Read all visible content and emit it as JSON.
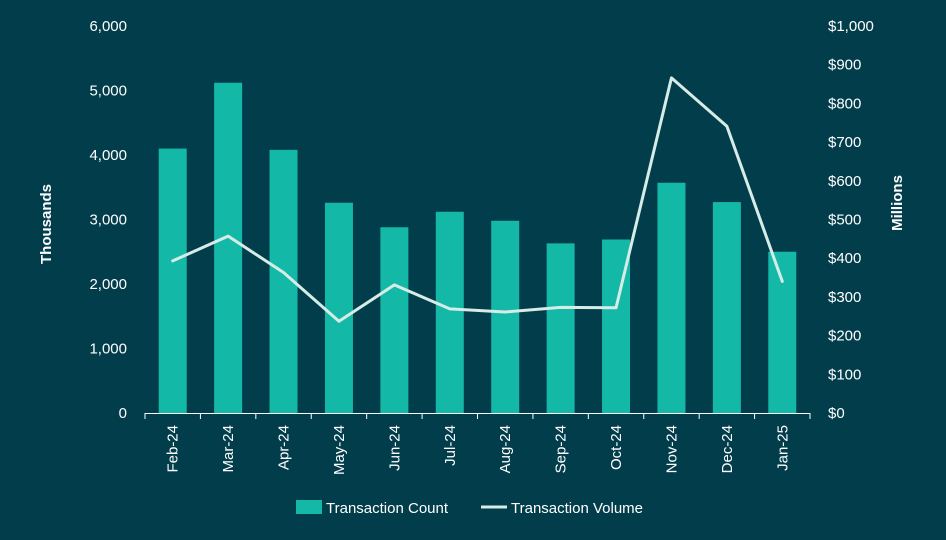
{
  "chart_data": {
    "type": "bar",
    "categories": [
      "Feb-24",
      "Mar-24",
      "Apr-24",
      "May-24",
      "Jun-24",
      "Jul-24",
      "Aug-24",
      "Sep-24",
      "Oct-24",
      "Nov-24",
      "Dec-24",
      "Jan-25"
    ],
    "series": [
      {
        "name": "Transaction Count",
        "type": "bar",
        "axis": "left",
        "values": [
          4100,
          5120,
          4080,
          3260,
          2880,
          3120,
          2980,
          2630,
          2690,
          3570,
          3270,
          2500
        ]
      },
      {
        "name": "Transaction Volume",
        "type": "line",
        "axis": "right",
        "values": [
          393,
          457,
          363,
          237,
          331,
          269,
          261,
          273,
          272,
          866,
          741,
          340
        ]
      }
    ],
    "ylabel": "Thousands",
    "y2label": "Millions",
    "ylim": [
      0,
      6000
    ],
    "y2lim": [
      0,
      1000
    ],
    "yticks": [
      "0",
      "1,000",
      "2,000",
      "3,000",
      "4,000",
      "5,000",
      "6,000"
    ],
    "y2ticks": [
      "$0",
      "$100",
      "$200",
      "$300",
      "$400",
      "$500",
      "$600",
      "$700",
      "$800",
      "$900",
      "$1,000"
    ],
    "legend": "bottom",
    "colors": {
      "bar": "#14b8a6",
      "line": "#d6ece6",
      "background": "#023d4c",
      "axis": "#ffffff"
    }
  }
}
